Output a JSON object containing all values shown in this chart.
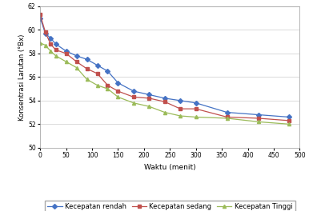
{
  "title": "",
  "xlabel": "Waktu (menit)",
  "ylabel": "Konsentrasi Larutan (°Bx)",
  "xlim": [
    0,
    500
  ],
  "ylim": [
    50,
    62
  ],
  "yticks": [
    50,
    52,
    54,
    56,
    58,
    60,
    62
  ],
  "xticks": [
    0,
    50,
    100,
    150,
    200,
    250,
    300,
    350,
    400,
    450,
    500
  ],
  "series": {
    "Kecepatan rendah": {
      "color": "#4472C4",
      "marker": "D",
      "markersize": 3,
      "x": [
        0,
        10,
        20,
        30,
        50,
        70,
        90,
        110,
        130,
        150,
        180,
        210,
        240,
        270,
        300,
        360,
        420,
        480
      ],
      "y": [
        61.0,
        59.7,
        59.3,
        58.8,
        58.2,
        57.8,
        57.5,
        57.0,
        56.5,
        55.5,
        54.8,
        54.5,
        54.2,
        54.0,
        53.8,
        53.0,
        52.8,
        52.6
      ]
    },
    "Kecepatan sedang": {
      "color": "#C0504D",
      "marker": "s",
      "markersize": 3,
      "x": [
        0,
        10,
        20,
        30,
        50,
        70,
        90,
        110,
        130,
        150,
        180,
        210,
        240,
        270,
        300,
        360,
        420,
        480
      ],
      "y": [
        61.3,
        59.8,
        58.8,
        58.3,
        58.0,
        57.3,
        56.7,
        56.3,
        55.3,
        54.8,
        54.3,
        54.2,
        53.9,
        53.3,
        53.3,
        52.6,
        52.5,
        52.3
      ]
    },
    "Kecepatan Tinggi": {
      "color": "#9BBB59",
      "marker": "^",
      "markersize": 3,
      "x": [
        0,
        10,
        20,
        30,
        50,
        70,
        90,
        110,
        130,
        150,
        180,
        210,
        240,
        270,
        300,
        360,
        420,
        480
      ],
      "y": [
        58.9,
        58.7,
        58.2,
        57.8,
        57.3,
        56.8,
        55.8,
        55.3,
        55.0,
        54.3,
        53.8,
        53.5,
        53.0,
        52.7,
        52.6,
        52.5,
        52.2,
        52.0
      ]
    }
  },
  "background_color": "#ffffff",
  "grid_color": "#cccccc",
  "plot_area_bg": "#ffffff",
  "legend_ncol": 3,
  "legend_fontsize": 6.0
}
